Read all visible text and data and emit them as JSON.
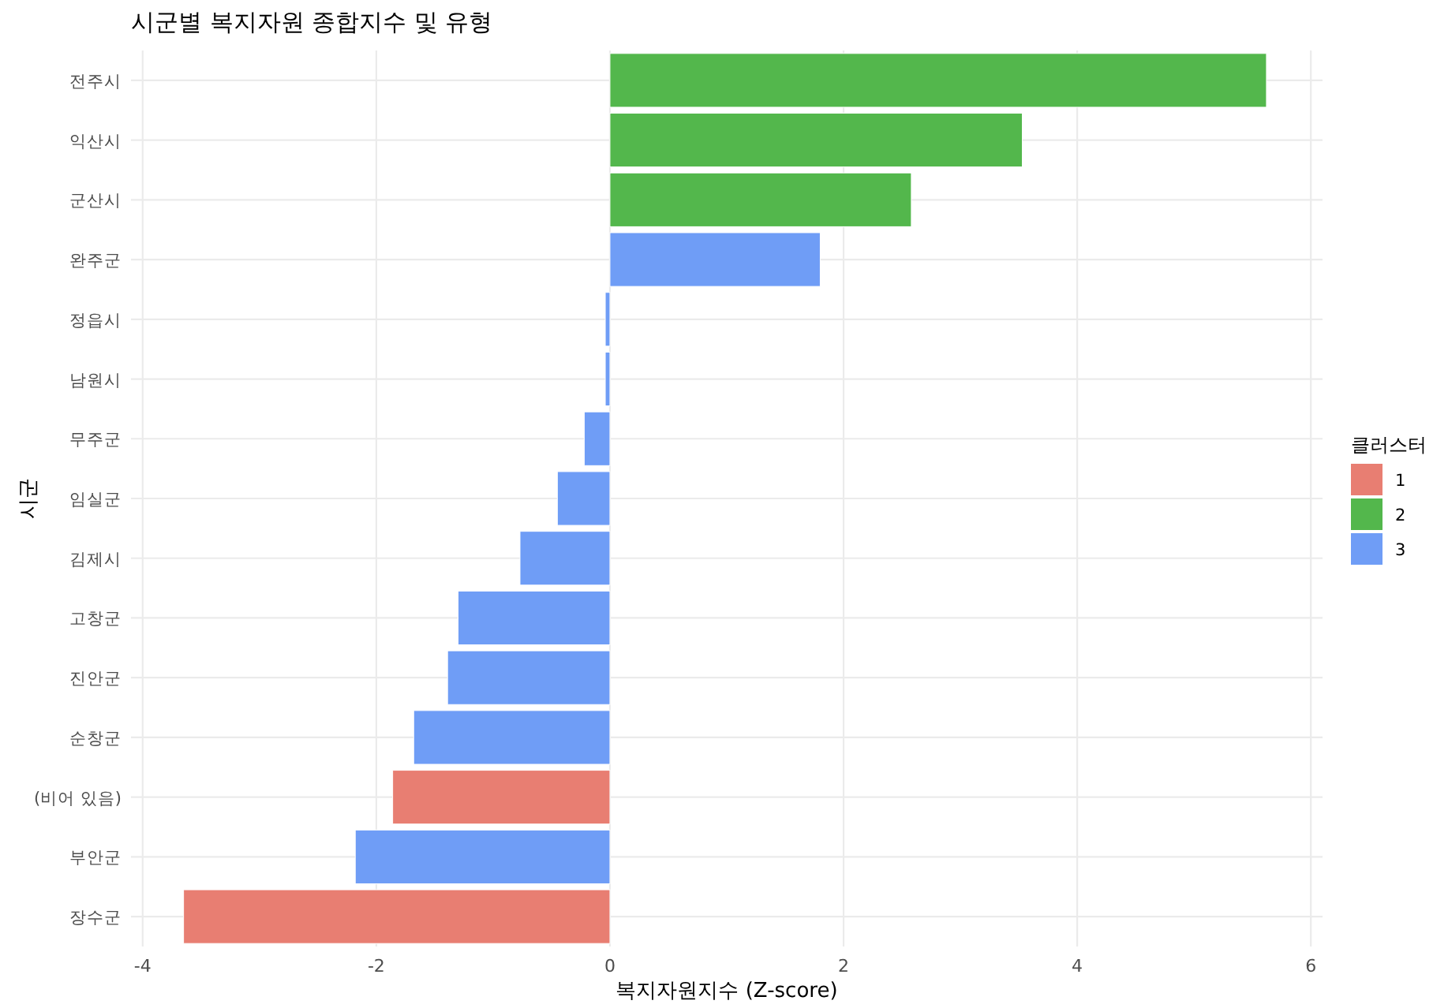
{
  "chart_data": {
    "type": "bar",
    "orientation": "horizontal",
    "title": "시군별 복지자원 종합지수 및 유형",
    "xlabel": "복지자원지수 (Z-score)",
    "ylabel": "시군",
    "legend_title": "클러스터",
    "legend": "right",
    "grid": true,
    "categories": [
      "전주시",
      "익산시",
      "군산시",
      "완주군",
      "정읍시",
      "남원시",
      "무주군",
      "임실군",
      "김제시",
      "고창군",
      "진안군",
      "순창군",
      "(비어 있음)",
      "부안군",
      "장수군"
    ],
    "xlim": [
      -4.1,
      6.1
    ],
    "xticks": [
      -4,
      -2,
      0,
      2,
      4,
      6
    ],
    "series": [
      {
        "name": "1",
        "color": "#e87e72",
        "values": [
          null,
          null,
          null,
          null,
          null,
          null,
          null,
          null,
          null,
          null,
          null,
          null,
          -1.86,
          null,
          -3.65
        ]
      },
      {
        "name": "2",
        "color": "#53b74c",
        "values": [
          5.62,
          3.53,
          2.58,
          null,
          null,
          null,
          null,
          null,
          null,
          null,
          null,
          null,
          null,
          null,
          null
        ]
      },
      {
        "name": "3",
        "color": "#6f9df6",
        "values": [
          null,
          null,
          null,
          1.8,
          -0.04,
          -0.04,
          -0.22,
          -0.45,
          -0.77,
          -1.3,
          -1.39,
          -1.68,
          null,
          -2.18,
          null
        ]
      }
    ]
  }
}
